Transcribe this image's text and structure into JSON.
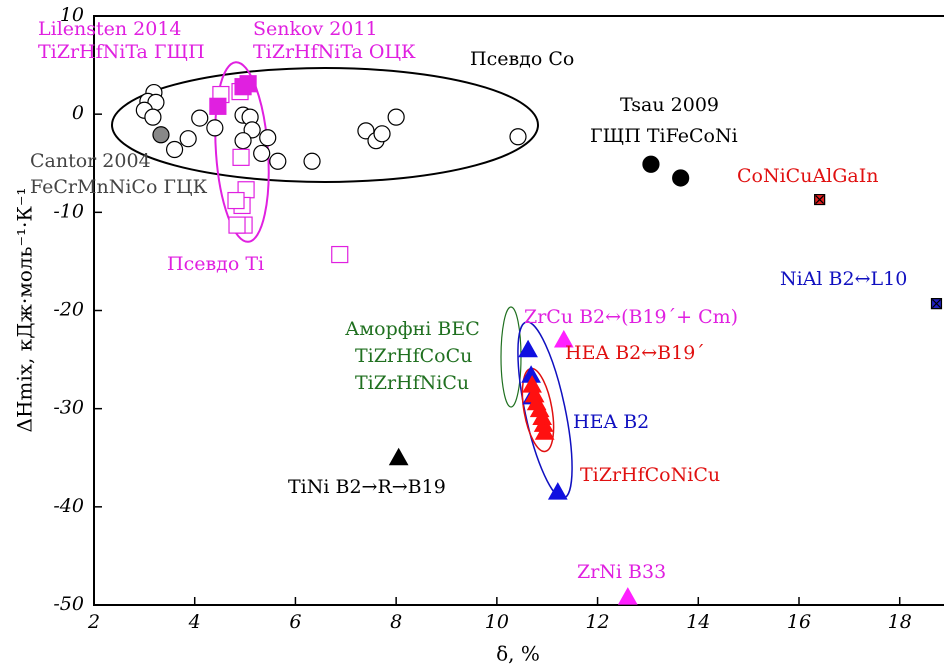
{
  "chart_data": {
    "type": "scatter",
    "xlabel": "δ, %",
    "ylabel": "ΔHmix, кДж·моль⁻¹·К⁻¹",
    "xlim": [
      2,
      18.8
    ],
    "ylim": [
      -50,
      10
    ],
    "xticks": [
      2,
      4,
      6,
      8,
      10,
      12,
      14,
      16,
      18
    ],
    "yticks": [
      -50,
      -40,
      -30,
      -20,
      -10,
      0,
      10
    ],
    "series": [
      {
        "marker": "circle",
        "color": "#000000",
        "fill": "#ffffff",
        "x": [
          3.19,
          3.07,
          3.23,
          3.0,
          3.17,
          3.6,
          3.87,
          4.1,
          4.4,
          4.96,
          5.1,
          5.14,
          4.96,
          5.45,
          5.33,
          5.65,
          6.33,
          7.4,
          7.6,
          7.72,
          8.0,
          10.42
        ],
        "values": [
          2.2,
          1.3,
          1.2,
          0.4,
          -0.3,
          -3.6,
          -2.5,
          -0.4,
          -1.4,
          -0.1,
          -0.3,
          -1.6,
          -2.7,
          -2.4,
          -4.0,
          -4.8,
          -4.8,
          -1.7,
          -2.7,
          -2.0,
          -0.3,
          -2.3
        ]
      },
      {
        "marker": "circle",
        "color": "#000000",
        "fill": "#888888",
        "x": [
          3.33
        ],
        "values": [
          -2.1
        ]
      },
      {
        "marker": "circle",
        "color": "#000000",
        "fill": "#000000",
        "x": [
          13.06,
          13.65
        ],
        "values": [
          -5.1,
          -6.5
        ]
      },
      {
        "marker": "square",
        "color": "#e020e0",
        "fill": "#ffffff",
        "x": [
          4.52,
          4.9,
          4.92,
          5.02,
          4.94,
          4.98,
          4.84,
          4.82,
          6.88
        ],
        "values": [
          2.0,
          2.3,
          -4.4,
          -7.7,
          -9.3,
          -11.3,
          -11.3,
          -8.8,
          -14.3
        ]
      },
      {
        "marker": "square",
        "color": "#e020e0",
        "fill": "#e020e0",
        "x": [
          5.06,
          4.96,
          4.46
        ],
        "values": [
          3.1,
          2.8,
          0.8
        ]
      },
      {
        "marker": "xsquare",
        "color": "#000000",
        "fill": "#e02020",
        "x": [
          16.41
        ],
        "values": [
          -8.7
        ]
      },
      {
        "marker": "xsquare",
        "color": "#000000",
        "fill": "#2020c0",
        "x": [
          18.73
        ],
        "values": [
          -19.3
        ]
      },
      {
        "marker": "triangle",
        "color": "#000000",
        "fill": "#000000",
        "x": [
          8.05
        ],
        "values": [
          -35.0
        ]
      },
      {
        "marker": "triangle",
        "color": "#ff20ff",
        "fill": "#ff20ff",
        "x": [
          11.33,
          12.6
        ],
        "values": [
          -23.0,
          -49.2
        ]
      },
      {
        "marker": "triangle",
        "color": "#1010e0",
        "fill": "#1010e0",
        "x": [
          10.62,
          10.68,
          10.7,
          11.21
        ],
        "values": [
          -24.0,
          -26.6,
          -28.8,
          -38.5
        ]
      },
      {
        "marker": "triangle",
        "color": "#ff1010",
        "fill": "#ff1010",
        "x": [
          10.7,
          10.75,
          10.79,
          10.85,
          10.9,
          10.93,
          10.95
        ],
        "values": [
          -27.6,
          -28.6,
          -29.4,
          -30.1,
          -30.9,
          -31.6,
          -32.4
        ]
      }
    ],
    "annotations": [
      {
        "text": "Lilensten 2014",
        "color": "#e020e0"
      },
      {
        "text": "TiZrHfNiTa ГЩП",
        "color": "#e020e0"
      },
      {
        "text": "Senkov 2011",
        "color": "#e020e0"
      },
      {
        "text": "TiZrHfNiTa ОЦК",
        "color": "#e020e0"
      },
      {
        "text": "Псевдо Co",
        "color": "#000000"
      },
      {
        "text": "Tsau 2009",
        "color": "#000000"
      },
      {
        "text": "ГЩП TiFeCoNi",
        "color": "#000000"
      },
      {
        "text": "Cantor 2004",
        "color": "#444444"
      },
      {
        "text": "FeCrMnNiCo ГЦК",
        "color": "#444444"
      },
      {
        "text": "CoNiCuAlGaIn",
        "color": "#e01010"
      },
      {
        "text": "Псевдо Ti",
        "color": "#e020e0"
      },
      {
        "text": "NiAl B2↔L10",
        "color": "#1010c0"
      },
      {
        "text": "ZrCu B2↔(B19´+ Cm)",
        "color": "#e020e0"
      },
      {
        "text": "Аморфні ВЕС",
        "color": "#207020"
      },
      {
        "text": "TiZrHfCoCu",
        "color": "#207020"
      },
      {
        "text": "TiZrHfNiCu",
        "color": "#207020"
      },
      {
        "text": "HEA B2↔B19´",
        "color": "#e01010"
      },
      {
        "text": "HEA B2",
        "color": "#1010c0"
      },
      {
        "text": "TiZrHfCoNiCu",
        "color": "#e01010"
      },
      {
        "text": "TiNi B2→R→B19",
        "color": "#000000"
      },
      {
        "text": "ZrNi B33",
        "color": "#e020e0"
      }
    ]
  }
}
